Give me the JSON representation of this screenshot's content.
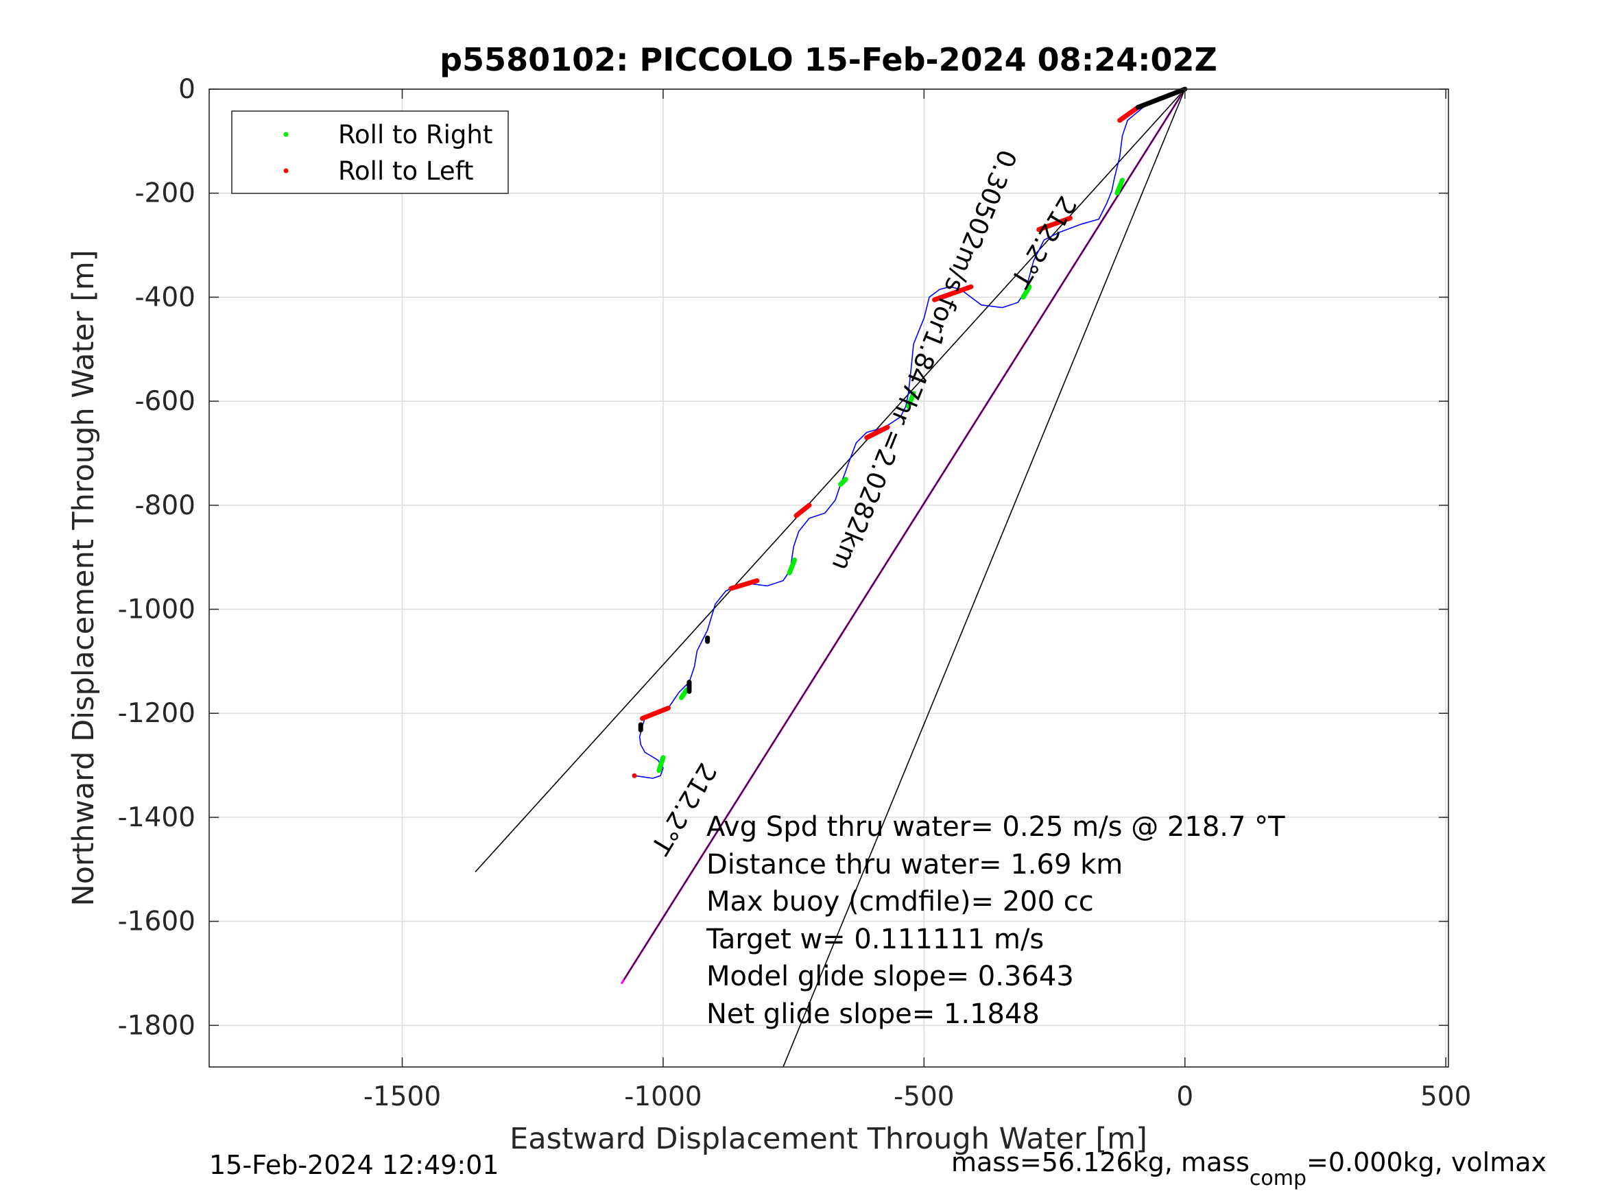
{
  "chart_data": {
    "type": "line",
    "title": "p5580102: PICCOLO 15-Feb-2024 08:24:02Z",
    "xlabel": "Eastward Displacement Through Water [m]",
    "ylabel": "Northward Displacement Through Water [m]",
    "xlim": [
      -1870,
      505
    ],
    "ylim": [
      -1880,
      0
    ],
    "xticks": [
      -1500,
      -1000,
      -500,
      0,
      500
    ],
    "yticks": [
      0,
      -200,
      -400,
      -600,
      -800,
      -1000,
      -1200,
      -1400,
      -1600,
      -1800
    ],
    "xtick_labels": [
      "-1500",
      "-1000",
      "-500",
      "0",
      "500"
    ],
    "ytick_labels": [
      "0",
      "-200",
      "-400",
      "-600",
      "-800",
      "-1000",
      "-1200",
      "-1400",
      "-1600",
      "-1800"
    ],
    "grid": true,
    "legend": {
      "position": "top-left",
      "entries": [
        {
          "label": "Roll to Right",
          "color": "#00ee00"
        },
        {
          "label": "Roll to Left",
          "color": "#ff0000"
        }
      ]
    },
    "track": {
      "name": "glider track",
      "color": "#0000ff",
      "x": [
        0,
        -40,
        -80,
        -110,
        -120,
        -125,
        -135,
        -140,
        -150,
        -165,
        -200,
        -240,
        -270,
        -290,
        -298,
        -305,
        -310,
        -320,
        -350,
        -390,
        -410,
        -430,
        -450,
        -470,
        -490,
        -500,
        -520,
        -525,
        -530,
        -535,
        -545,
        -575,
        -610,
        -630,
        -645,
        -652,
        -660,
        -670,
        -690,
        -720,
        -740,
        -750,
        -755,
        -760,
        -770,
        -800,
        -840,
        -860,
        -880,
        -900,
        -915,
        -925,
        -935,
        -940,
        -950,
        -970,
        -990,
        -1010,
        -1035,
        -1040,
        -1045,
        -1043,
        -1035,
        -1010,
        -1000,
        -1005,
        -1020,
        -1040,
        -1055
      ],
      "y": [
        0,
        -15,
        -35,
        -60,
        -90,
        -130,
        -170,
        -195,
        -220,
        -250,
        -260,
        -275,
        -290,
        -330,
        -360,
        -385,
        -395,
        -410,
        -420,
        -415,
        -400,
        -385,
        -380,
        -385,
        -400,
        -440,
        -490,
        -540,
        -585,
        -610,
        -630,
        -650,
        -660,
        -680,
        -720,
        -740,
        -760,
        -790,
        -815,
        -825,
        -850,
        -880,
        -915,
        -930,
        -945,
        -955,
        -950,
        -955,
        -965,
        -990,
        -1040,
        -1060,
        -1080,
        -1110,
        -1140,
        -1160,
        -1190,
        -1195,
        -1210,
        -1225,
        -1245,
        -1260,
        -1275,
        -1290,
        -1305,
        -1320,
        -1325,
        -1322,
        -1320
      ]
    },
    "roll_right_segments": [
      {
        "x": [
          -120,
          -130
        ],
        "y": [
          -175,
          -200
        ]
      },
      {
        "x": [
          -298,
          -310
        ],
        "y": [
          -380,
          -400
        ]
      },
      {
        "x": [
          -520,
          -530
        ],
        "y": [
          -585,
          -610
        ]
      },
      {
        "x": [
          -650,
          -660
        ],
        "y": [
          -750,
          -760
        ]
      },
      {
        "x": [
          -748,
          -758
        ],
        "y": [
          -905,
          -930
        ]
      },
      {
        "x": [
          -955,
          -965
        ],
        "y": [
          -1155,
          -1170
        ]
      },
      {
        "x": [
          -1000,
          -1008
        ],
        "y": [
          -1285,
          -1310
        ]
      }
    ],
    "roll_left_segments": [
      {
        "x": [
          -90,
          -125
        ],
        "y": [
          -35,
          -60
        ]
      },
      {
        "x": [
          -220,
          -280
        ],
        "y": [
          -248,
          -270
        ]
      },
      {
        "x": [
          -410,
          -480
        ],
        "y": [
          -380,
          -405
        ]
      },
      {
        "x": [
          -570,
          -610
        ],
        "y": [
          -650,
          -670
        ]
      },
      {
        "x": [
          -720,
          -745
        ],
        "y": [
          -800,
          -820
        ]
      },
      {
        "x": [
          -820,
          -870
        ],
        "y": [
          -945,
          -960
        ]
      },
      {
        "x": [
          -990,
          -1040
        ],
        "y": [
          -1190,
          -1210
        ]
      },
      {
        "x": [
          -1055,
          -1055
        ],
        "y": [
          -1320,
          -1320
        ]
      }
    ],
    "black_markers": [
      {
        "x": [
          0,
          -90
        ],
        "y": [
          0,
          -35
        ]
      },
      {
        "x": [
          -915,
          -915
        ],
        "y": [
          -1055,
          -1062
        ]
      },
      {
        "x": [
          -950,
          -950
        ],
        "y": [
          -1140,
          -1158
        ]
      },
      {
        "x": [
          -1043,
          -1043
        ],
        "y": [
          -1222,
          -1232
        ]
      }
    ],
    "lines": [
      {
        "name": "cone-left",
        "color": "#000000",
        "x": [
          0,
          -1360
        ],
        "y": [
          0,
          -1505
        ]
      },
      {
        "name": "heading-line",
        "color": "#ff00ff",
        "x": [
          0,
          -1080
        ],
        "y": [
          0,
          -1720
        ]
      },
      {
        "name": "heading-line-black",
        "color": "#000000",
        "x": [
          0,
          -1075
        ],
        "y": [
          0,
          -1712
        ]
      },
      {
        "name": "cone-right",
        "color": "#000000",
        "x": [
          0,
          -770
        ],
        "y": [
          0,
          -1880
        ]
      }
    ],
    "rotated_labels": [
      {
        "text": "212.2°T",
        "x": -285,
        "y": -285,
        "rotation": 121
      },
      {
        "text": "0.30502m/s for1.847hr =2.0282km",
        "x": -515,
        "y": -515,
        "rotation": 112
      },
      {
        "text": "212.2°T",
        "x": -975,
        "y": -1375,
        "rotation": 121
      }
    ],
    "annotations": [
      "Avg Spd thru water=  0.25 m/s @ 218.7 °T",
      "Distance thru water=  1.69 km",
      "Max buoy (cmdfile)= 200 cc",
      "Target w= 0.111111 m/s",
      "Model glide slope= 0.3643",
      "Net glide slope= 1.1848"
    ]
  },
  "footer": {
    "timestamp": "15-Feb-2024 12:49:01",
    "mass_prefix": "mass=56.126kg, mass",
    "mass_sub": "comp",
    "mass_suffix": "=0.000kg, volmax"
  }
}
